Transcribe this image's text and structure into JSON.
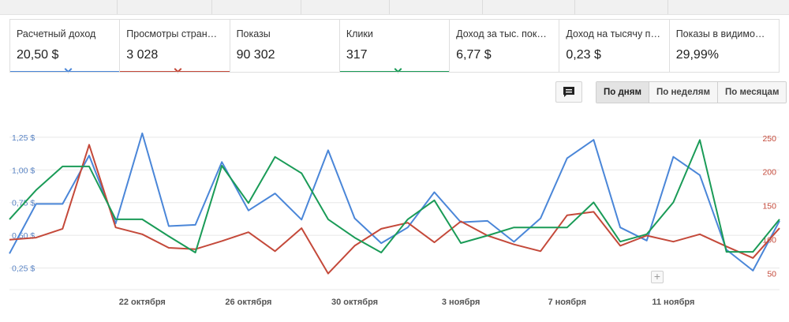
{
  "metrics": [
    {
      "label": "Расчетный доход",
      "value": "20,50 $",
      "color": "#4a86d8",
      "selected": true
    },
    {
      "label": "Просмотры стран…",
      "value": "3 028",
      "color": "#c4493a",
      "selected": true
    },
    {
      "label": "Показы",
      "value": "90 302",
      "color": "",
      "selected": false
    },
    {
      "label": "Клики",
      "value": "317",
      "color": "#1a9b57",
      "selected": true
    },
    {
      "label": "Доход за тыс. пок…",
      "value": "6,77 $",
      "color": "",
      "selected": false
    },
    {
      "label": "Доход на тысячу п…",
      "value": "0,23 $",
      "color": "",
      "selected": false
    },
    {
      "label": "Показы в видимо…",
      "value": "29,99%",
      "color": "",
      "selected": false
    }
  ],
  "controls": {
    "comment_icon": "comment-icon",
    "granularity": [
      {
        "label": "По дням",
        "active": true
      },
      {
        "label": "По неделям",
        "active": false
      },
      {
        "label": "По месяцам",
        "active": false
      }
    ],
    "add_annotation": "+"
  },
  "chart_data": {
    "type": "line",
    "x_ticks": [
      "22 октября",
      "26 октября",
      "30 октября",
      "3 ноября",
      "7 ноября",
      "11 ноября"
    ],
    "y_left_ticks": [
      "1,25 $",
      "1,00 $",
      "0,75 $",
      "0,50 $",
      "0,25 $"
    ],
    "y_left_range": [
      0,
      1.4
    ],
    "y_right_ticks": [
      "250",
      "200",
      "150",
      "100",
      "50"
    ],
    "y_right_range": [
      10,
      280
    ],
    "series": [
      {
        "name": "",
        "axis": "left",
        "color": "#4a86d8",
        "values": [
          0.36,
          0.74,
          0.74,
          1.11,
          0.59,
          1.28,
          0.57,
          0.58,
          1.06,
          0.69,
          0.82,
          0.62,
          1.15,
          0.63,
          0.44,
          0.56,
          0.83,
          0.6,
          0.61,
          0.45,
          0.63,
          1.09,
          1.23,
          0.56,
          0.46,
          1.1,
          0.96,
          0.39,
          0.23,
          0.61
        ]
      },
      {
        "name": "",
        "axis": "right",
        "color": "#c4493a",
        "values": [
          100,
          103,
          116,
          240,
          118,
          108,
          88,
          86,
          98,
          111,
          83,
          117,
          50,
          91,
          116,
          125,
          96,
          127,
          106,
          93,
          83,
          136,
          141,
          91,
          106,
          97,
          108,
          90,
          73,
          117
        ]
      },
      {
        "name": "",
        "axis": "right",
        "color": "#1a9b57",
        "values": [
          130,
          173,
          208,
          208,
          130,
          130,
          105,
          81,
          209,
          154,
          222,
          198,
          130,
          103,
          81,
          130,
          158,
          95,
          106,
          118,
          118,
          118,
          155,
          97,
          108,
          155,
          247,
          82,
          82,
          130
        ]
      }
    ]
  }
}
